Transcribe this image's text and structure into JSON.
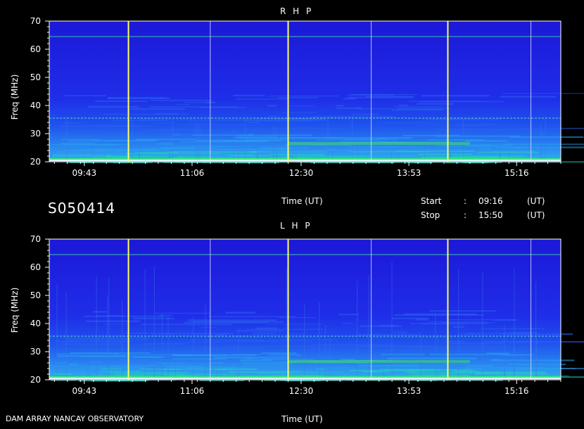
{
  "identifier": "S050414",
  "footer_left": "DAM ARRAY   NANCAY OBSERVATORY",
  "time_label": "Time (UT)",
  "start": {
    "label": "Start",
    "sep": ":",
    "value": "09:16",
    "unit": "(UT)"
  },
  "stop": {
    "label": "Stop",
    "sep": ":",
    "value": "15:50",
    "unit": "(UT)"
  },
  "colors": {
    "background": "#000000",
    "spectrum_base": "#2020e0",
    "marker_line": "#ffff60",
    "grid_line": "#e0e0ff"
  },
  "chart_data": [
    {
      "type": "heatmap",
      "title": "R H P",
      "ylabel": "Freq (MHz)",
      "xlabel": "Time (UT)",
      "ylim": [
        20,
        70
      ],
      "yticks": [
        20,
        30,
        40,
        50,
        60,
        70
      ],
      "xlim": [
        "09:16",
        "15:50"
      ],
      "xticks": [
        "09:43",
        "11:06",
        "12:30",
        "13:53",
        "15:16"
      ],
      "marker_times": [
        "10:17",
        "12:20",
        "14:23"
      ],
      "grid_times": [
        "11:20",
        "13:24",
        "15:27"
      ],
      "interference_lines_mhz": [
        64.5,
        35.5,
        21,
        20.5
      ]
    },
    {
      "type": "heatmap",
      "title": "L H P",
      "ylabel": "Freq (MHz)",
      "xlabel": "Time (UT)",
      "ylim": [
        20,
        70
      ],
      "yticks": [
        20,
        30,
        40,
        50,
        60,
        70
      ],
      "xlim": [
        "09:16",
        "15:50"
      ],
      "xticks": [
        "09:43",
        "11:06",
        "12:30",
        "13:53",
        "15:16"
      ],
      "marker_times": [
        "10:17",
        "12:20",
        "14:23"
      ],
      "grid_times": [
        "11:20",
        "13:24",
        "15:27"
      ],
      "interference_lines_mhz": [
        64.5,
        35.5,
        21,
        20.5
      ]
    }
  ]
}
